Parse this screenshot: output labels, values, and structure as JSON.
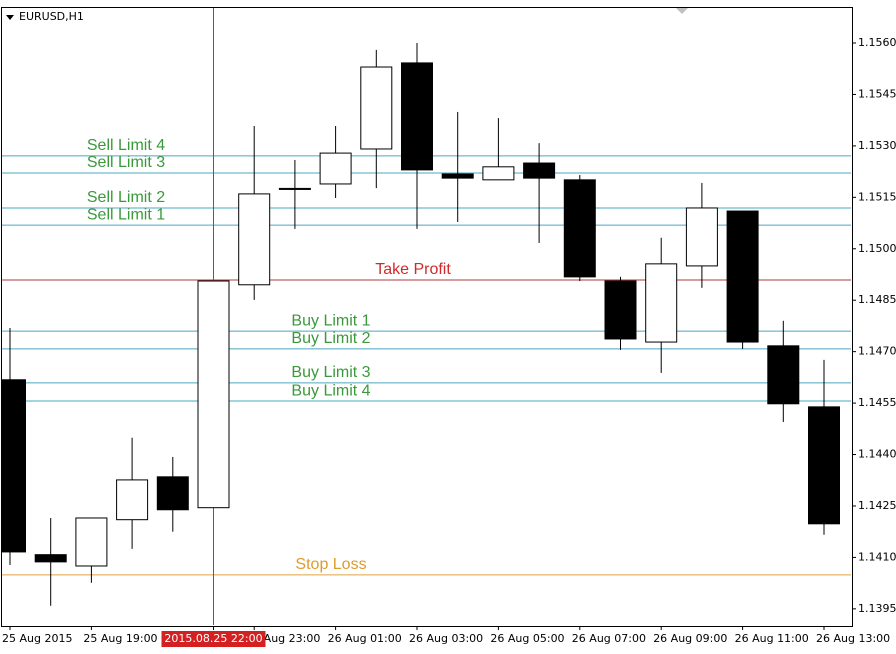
{
  "chart_data": {
    "type": "candlestick",
    "title": "EURUSD,H1",
    "categories": [
      "25 Aug 2015",
      null,
      "25 Aug 19:00",
      null,
      null,
      "2015.08.25 22:00",
      "25 Aug 23:00",
      null,
      "26 Aug 01:00",
      null,
      "26 Aug 03:00",
      null,
      "26 Aug 05:00",
      null,
      "26 Aug 07:00",
      null,
      "26 Aug 09:00",
      null,
      "26 Aug 11:00",
      null,
      "26 Aug 13:00"
    ],
    "open": [
      1.14618,
      1.14108,
      1.14075,
      1.1421,
      1.14335,
      1.14245,
      1.14895,
      1.15173,
      1.15189,
      1.15291,
      1.15542,
      1.15218,
      1.15201,
      1.1525,
      1.15201,
      1.14906,
      1.14728,
      1.1495,
      1.1511,
      1.14717,
      1.14539
    ],
    "high": [
      1.14769,
      1.14215,
      1.14215,
      1.14449,
      1.14393,
      1.14906,
      1.15358,
      1.15259,
      1.15358,
      1.1558,
      1.156,
      1.15399,
      1.15381,
      1.15308,
      1.15215,
      1.14918,
      1.15032,
      1.15192,
      1.1511,
      1.1479,
      1.14676
    ],
    "low": [
      1.14078,
      1.13959,
      1.14026,
      1.14125,
      1.14175,
      1.14245,
      1.14851,
      1.15058,
      1.15148,
      1.15177,
      1.15058,
      1.15078,
      1.15201,
      1.15017,
      1.14906,
      1.14705,
      1.14638,
      1.14886,
      1.14708,
      1.14495,
      1.14166
    ],
    "close": [
      1.14116,
      1.14087,
      1.14215,
      1.14326,
      1.14239,
      1.14906,
      1.1516,
      1.15176,
      1.15279,
      1.1553,
      1.1523,
      1.15206,
      1.15239,
      1.15206,
      1.14918,
      1.14737,
      1.14956,
      1.15119,
      1.14728,
      1.14548,
      1.14198
    ],
    "up_color": "#ffffff",
    "down_color": "#000000",
    "highlighted_category": 5,
    "levels": [
      {
        "name": "Sell Limit 4",
        "value": 1.15271,
        "color": "#4aa8c0",
        "label_color": "#3a9a3a"
      },
      {
        "name": "Sell Limit 3",
        "value": 1.15221,
        "color": "#4aa8c0",
        "label_color": "#3a9a3a"
      },
      {
        "name": "Sell Limit 2",
        "value": 1.15119,
        "color": "#4aa8c0",
        "label_color": "#3a9a3a"
      },
      {
        "name": "Sell Limit 1",
        "value": 1.15069,
        "color": "#4aa8c0",
        "label_color": "#3a9a3a"
      },
      {
        "name": "Take Profit",
        "value": 1.14909,
        "color": "#b03a3a",
        "label_color": "#d02a2a"
      },
      {
        "name": "Buy Limit 1",
        "value": 1.1476,
        "color": "#4aa8c0",
        "label_color": "#3a9a3a"
      },
      {
        "name": "Buy Limit 2",
        "value": 1.14708,
        "color": "#4aa8c0",
        "label_color": "#3a9a3a"
      },
      {
        "name": "Buy Limit 3",
        "value": 1.14609,
        "color": "#4aa8c0",
        "label_color": "#3a9a3a"
      },
      {
        "name": "Buy Limit 4",
        "value": 1.14556,
        "color": "#4aa8c0",
        "label_color": "#3a9a3a"
      },
      {
        "name": "Stop Loss",
        "value": 1.14049,
        "color": "#e0a040",
        "label_color": "#e09a30"
      }
    ],
    "ylim": [
      1.139,
      1.15705
    ],
    "yticks": [
      {
        "value": 1.156,
        "label": "1.1560"
      },
      1.1545,
      {
        "value": 1.153,
        "label": "1.1530"
      },
      1.1515,
      {
        "value": 1.15,
        "label": "1.1500"
      },
      1.1485,
      {
        "value": 1.147,
        "label": "1.1470"
      },
      1.1455,
      {
        "value": 1.144,
        "label": "1.1440"
      },
      1.1425,
      {
        "value": 1.141,
        "label": "1.1410"
      },
      1.1395
    ]
  }
}
